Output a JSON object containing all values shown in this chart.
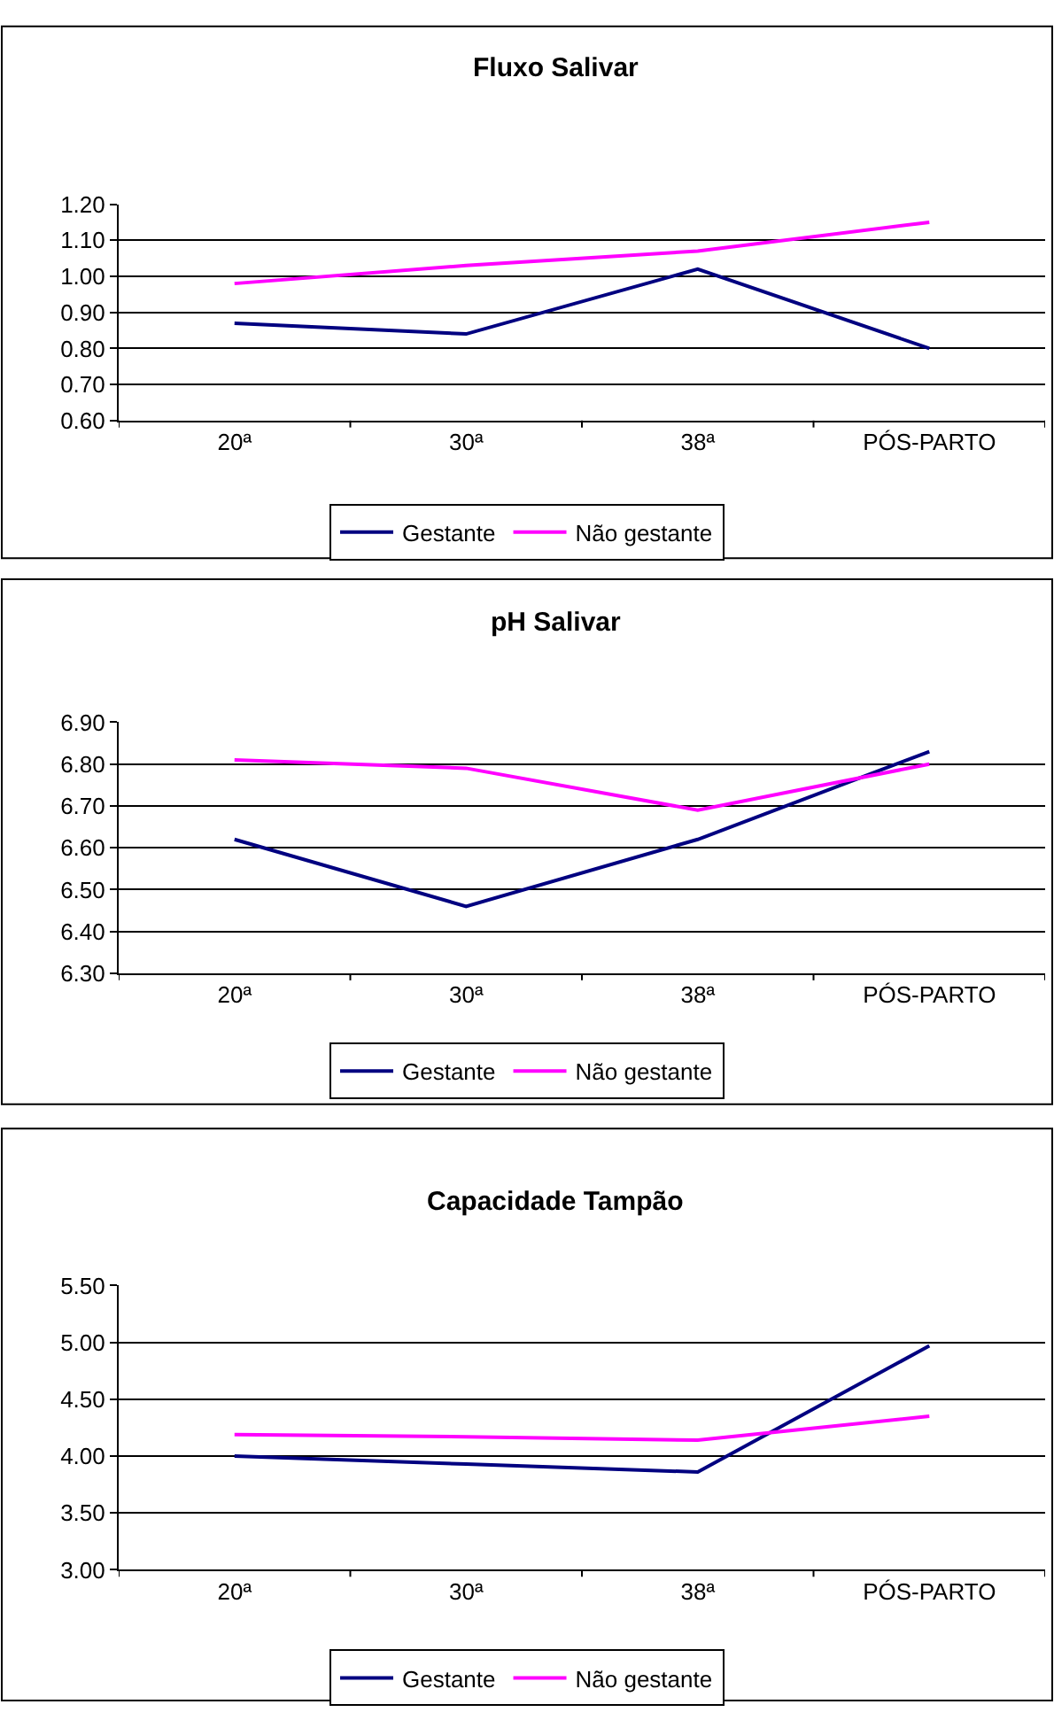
{
  "chart_data": [
    {
      "type": "line",
      "title": "Fluxo Salivar",
      "categories": [
        "20ª",
        "30ª",
        "38ª",
        "PÓS-PARTO"
      ],
      "ylim": [
        0.6,
        1.2
      ],
      "yticks": [
        {
          "value": 0.6,
          "label": "0.60"
        },
        {
          "value": 0.7,
          "label": "0.70"
        },
        {
          "value": 0.8,
          "label": "0.80"
        },
        {
          "value": 0.9,
          "label": "0.90"
        },
        {
          "value": 1.0,
          "label": "1.00"
        },
        {
          "value": 1.1,
          "label": "1.10"
        },
        {
          "value": 1.2,
          "label": "1.20"
        }
      ],
      "grid": "y",
      "legend": "bottom",
      "marker": "none",
      "line_style": "solid",
      "series": [
        {
          "name": "Gestante",
          "color": "#000080",
          "values": [
            0.87,
            0.84,
            1.02,
            0.8
          ]
        },
        {
          "name": "Não gestante",
          "color": "#ff00ff",
          "values": [
            0.98,
            1.03,
            1.07,
            1.15
          ]
        }
      ]
    },
    {
      "type": "line",
      "title": "pH Salivar",
      "categories": [
        "20ª",
        "30ª",
        "38ª",
        "PÓS-PARTO"
      ],
      "ylim": [
        6.3,
        6.9
      ],
      "yticks": [
        {
          "value": 6.3,
          "label": "6.30"
        },
        {
          "value": 6.4,
          "label": "6.40"
        },
        {
          "value": 6.5,
          "label": "6.50"
        },
        {
          "value": 6.6,
          "label": "6.60"
        },
        {
          "value": 6.7,
          "label": "6.70"
        },
        {
          "value": 6.8,
          "label": "6.80"
        },
        {
          "value": 6.9,
          "label": "6.90"
        }
      ],
      "grid": "y",
      "legend": "bottom",
      "marker": "none",
      "line_style": "solid",
      "series": [
        {
          "name": "Gestante",
          "color": "#000080",
          "values": [
            6.62,
            6.46,
            6.62,
            6.83
          ]
        },
        {
          "name": "Não gestante",
          "color": "#ff00ff",
          "values": [
            6.81,
            6.79,
            6.69,
            6.8
          ]
        }
      ]
    },
    {
      "type": "line",
      "title": "Capacidade Tampão",
      "categories": [
        "20ª",
        "30ª",
        "38ª",
        "PÓS-PARTO"
      ],
      "ylim": [
        3.0,
        5.5
      ],
      "yticks": [
        {
          "value": 3.0,
          "label": "3.00"
        },
        {
          "value": 3.5,
          "label": "3.50"
        },
        {
          "value": 4.0,
          "label": "4.00"
        },
        {
          "value": 4.5,
          "label": "4.50"
        },
        {
          "value": 5.0,
          "label": "5.00"
        },
        {
          "value": 5.5,
          "label": "5.50"
        }
      ],
      "grid": "y",
      "legend": "bottom",
      "marker": "none",
      "line_style": "solid",
      "series": [
        {
          "name": "Gestante",
          "color": "#000080",
          "values": [
            4.0,
            3.93,
            3.86,
            4.97
          ]
        },
        {
          "name": "Não gestante",
          "color": "#ff00ff",
          "values": [
            4.19,
            4.17,
            4.14,
            4.35
          ]
        }
      ]
    }
  ]
}
